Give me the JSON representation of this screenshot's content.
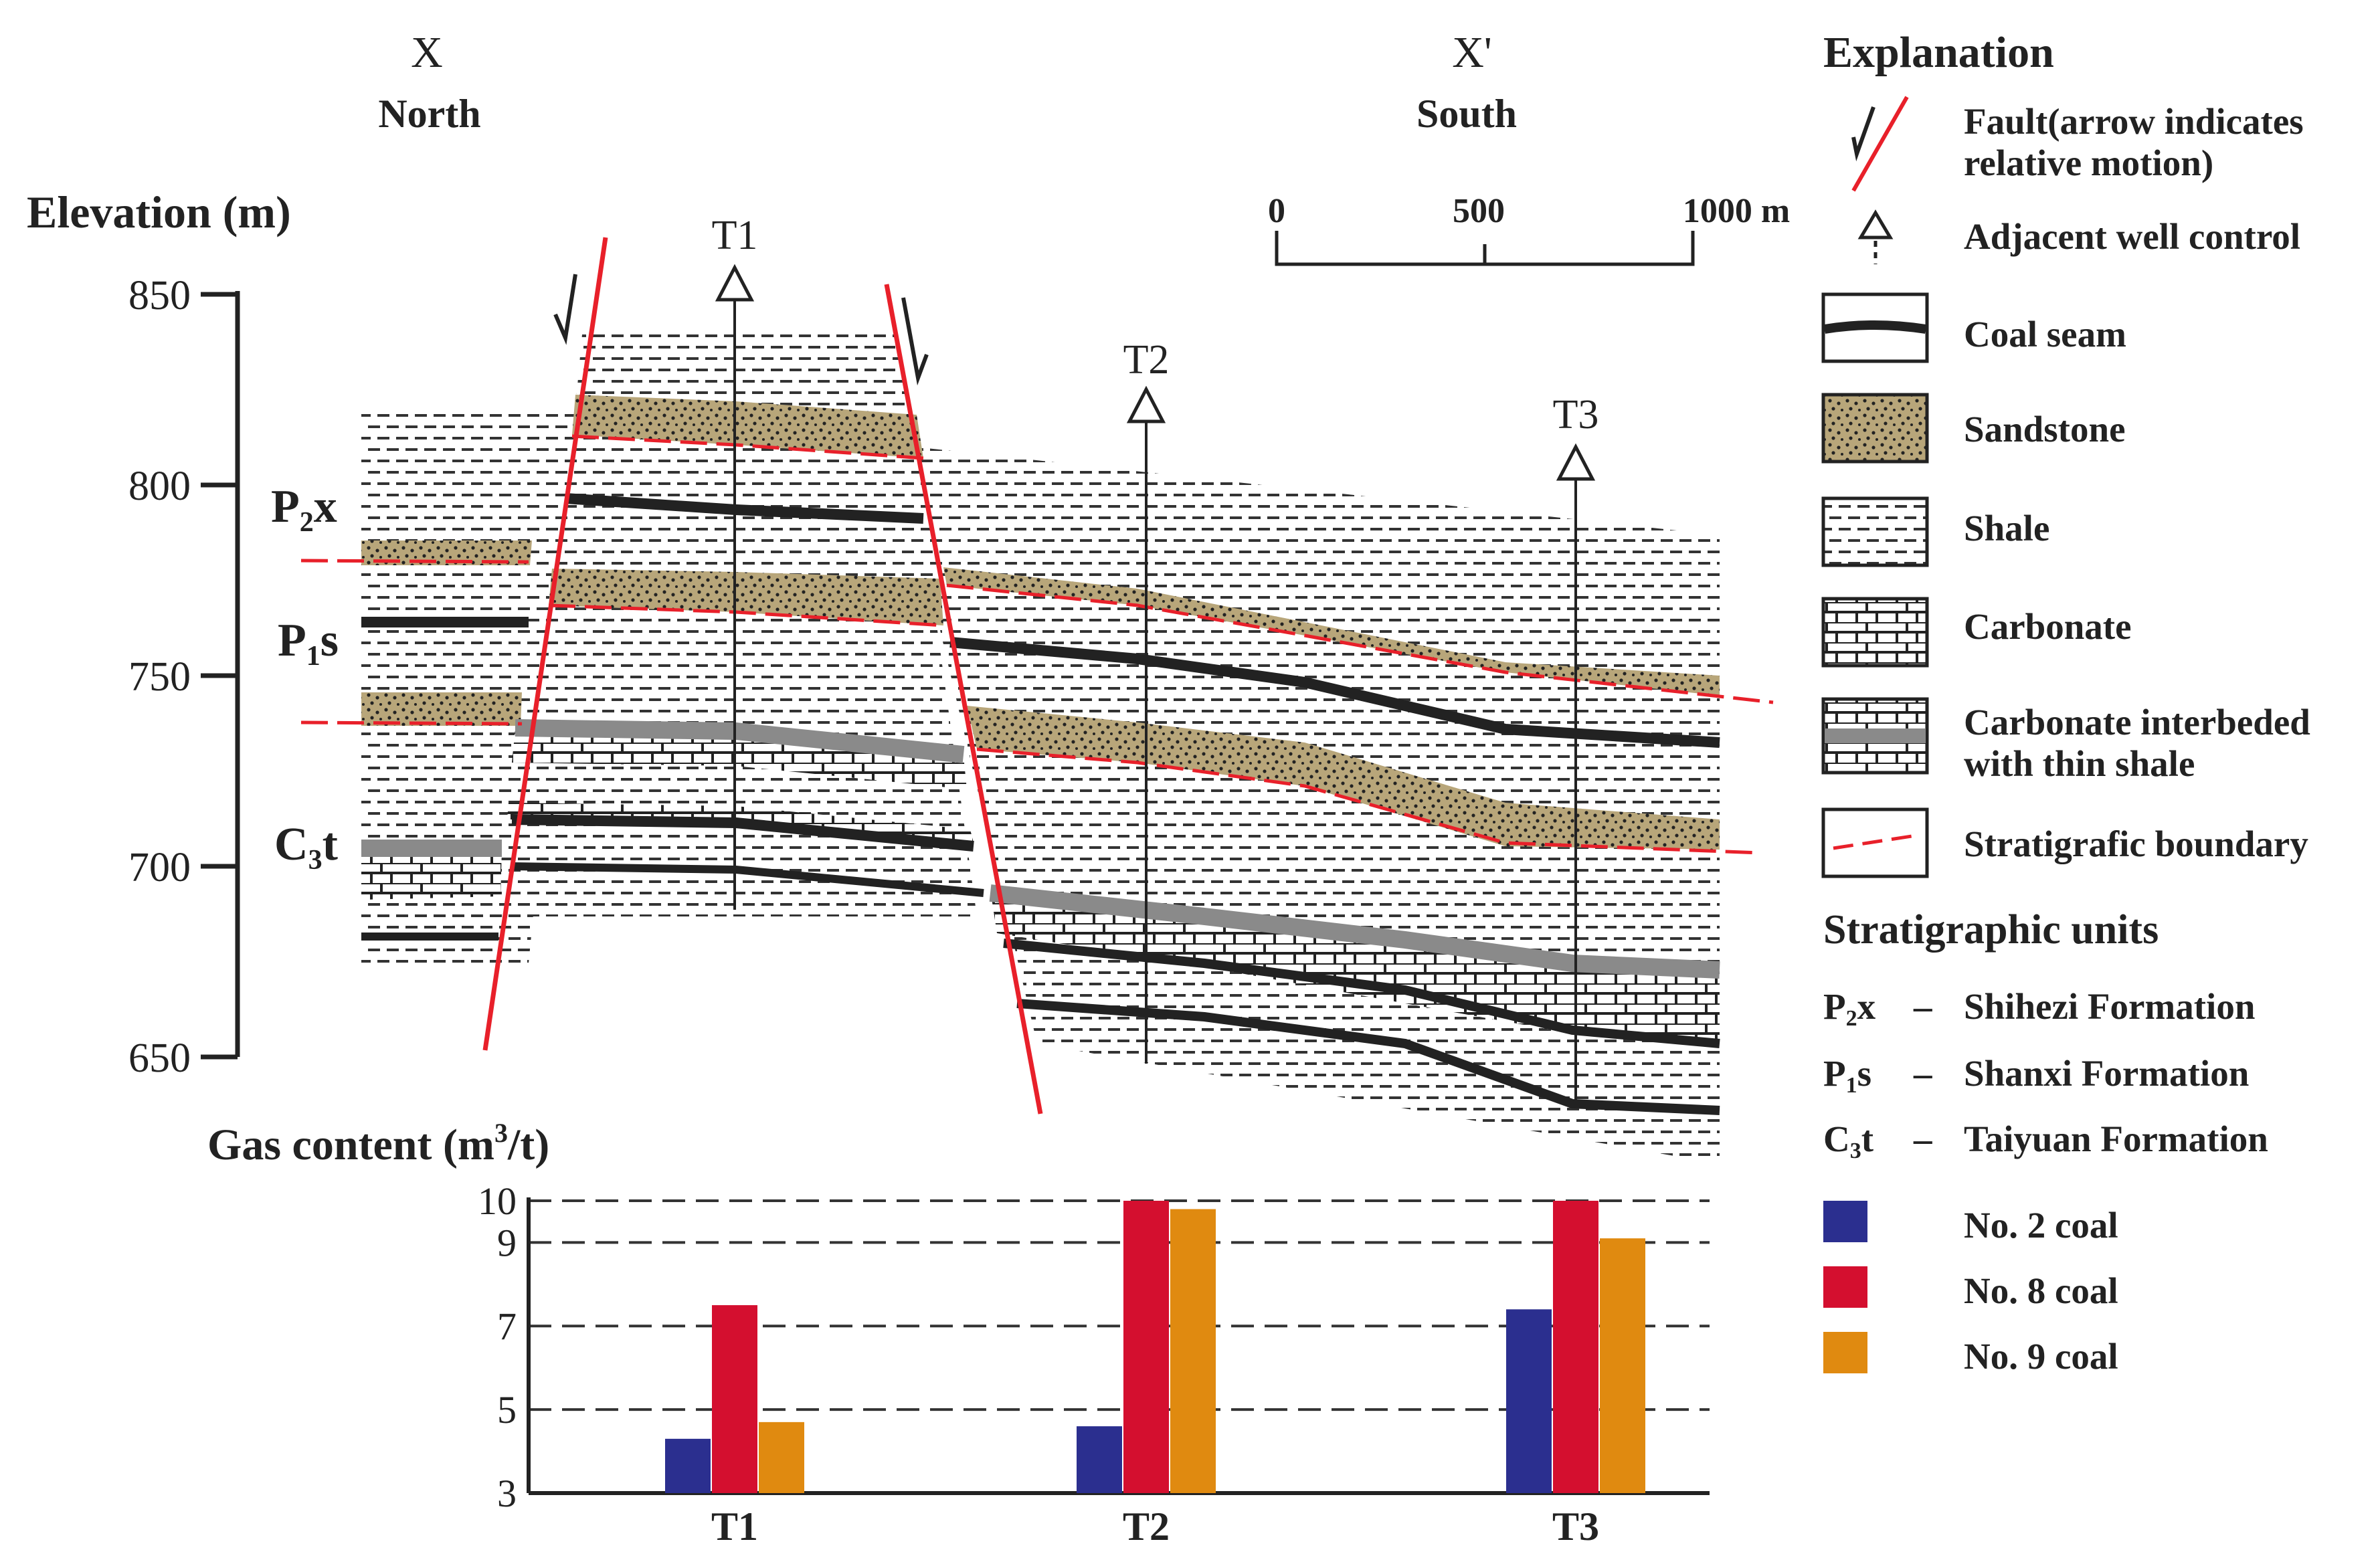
{
  "header": {
    "left_letter": "X",
    "left_dir": "North",
    "right_letter": "X'",
    "right_dir": "South"
  },
  "section": {
    "elevation_label": "Elevation (m)",
    "elevation_ticks": [
      850,
      800,
      750,
      700,
      650
    ],
    "units": [
      {
        "main": "P",
        "sub": "2",
        "rest": "x"
      },
      {
        "main": "P",
        "sub": "1",
        "rest": "s"
      },
      {
        "main": "C",
        "sub": "3",
        "rest": "t"
      }
    ],
    "wells": [
      "T1",
      "T2",
      "T3"
    ]
  },
  "scale_bar": {
    "labels": [
      "0",
      "500",
      "1000 m"
    ]
  },
  "explanation": {
    "title": "Explanation",
    "items": [
      {
        "key": "fault",
        "lines": [
          "Fault(arrow indicates",
          "relative motion)"
        ]
      },
      {
        "key": "well",
        "lines": [
          "Adjacent  well  control"
        ]
      },
      {
        "key": "coal",
        "lines": [
          "Coal  seam"
        ]
      },
      {
        "key": "sandstone",
        "lines": [
          "Sandstone"
        ]
      },
      {
        "key": "shale",
        "lines": [
          "Shale"
        ]
      },
      {
        "key": "carbonate",
        "lines": [
          "Carbonate"
        ]
      },
      {
        "key": "carb_shale",
        "lines": [
          "Carbonate interbeded",
          "with thin shale"
        ]
      },
      {
        "key": "boundary",
        "lines": [
          "Stratigrafic  boundary"
        ]
      }
    ],
    "units_title": "Stratigraphic units",
    "units": [
      {
        "code_main": "P",
        "code_sub": "2",
        "code_rest": "x",
        "dash": "–",
        "name": "Shihezi Formation"
      },
      {
        "code_main": "P",
        "code_sub": "1",
        "code_rest": "s",
        "dash": "–",
        "name": "Shanxi Formation"
      },
      {
        "code_main": "C",
        "code_sub": "3",
        "code_rest": "t",
        "dash": "–",
        "name": "Taiyuan Formation"
      }
    ]
  },
  "colors": {
    "coal2": "#2b2f8f",
    "coal8": "#d40f2f",
    "coal9": "#e08a10",
    "fault": "#e8202a",
    "sandstone": "#b8a67a",
    "carbonate_grey": "#8a8a8a"
  },
  "chart_data": {
    "type": "bar",
    "title": "Gas content (m³/t)",
    "title_parts": {
      "pre": "Gas content (m",
      "sup": "3",
      "post": "/t)"
    },
    "categories": [
      "T1",
      "T2",
      "T3"
    ],
    "series": [
      {
        "name": "No. 2 coal",
        "values": [
          4.3,
          4.6,
          7.4
        ]
      },
      {
        "name": "No. 8 coal",
        "values": [
          7.5,
          10.0,
          10.0
        ]
      },
      {
        "name": "No. 9 coal",
        "values": [
          4.7,
          9.8,
          9.1
        ]
      }
    ],
    "ylim": [
      3,
      10
    ],
    "yticks": [
      3,
      5,
      7,
      9,
      10
    ],
    "grid": true,
    "legend": "right"
  }
}
